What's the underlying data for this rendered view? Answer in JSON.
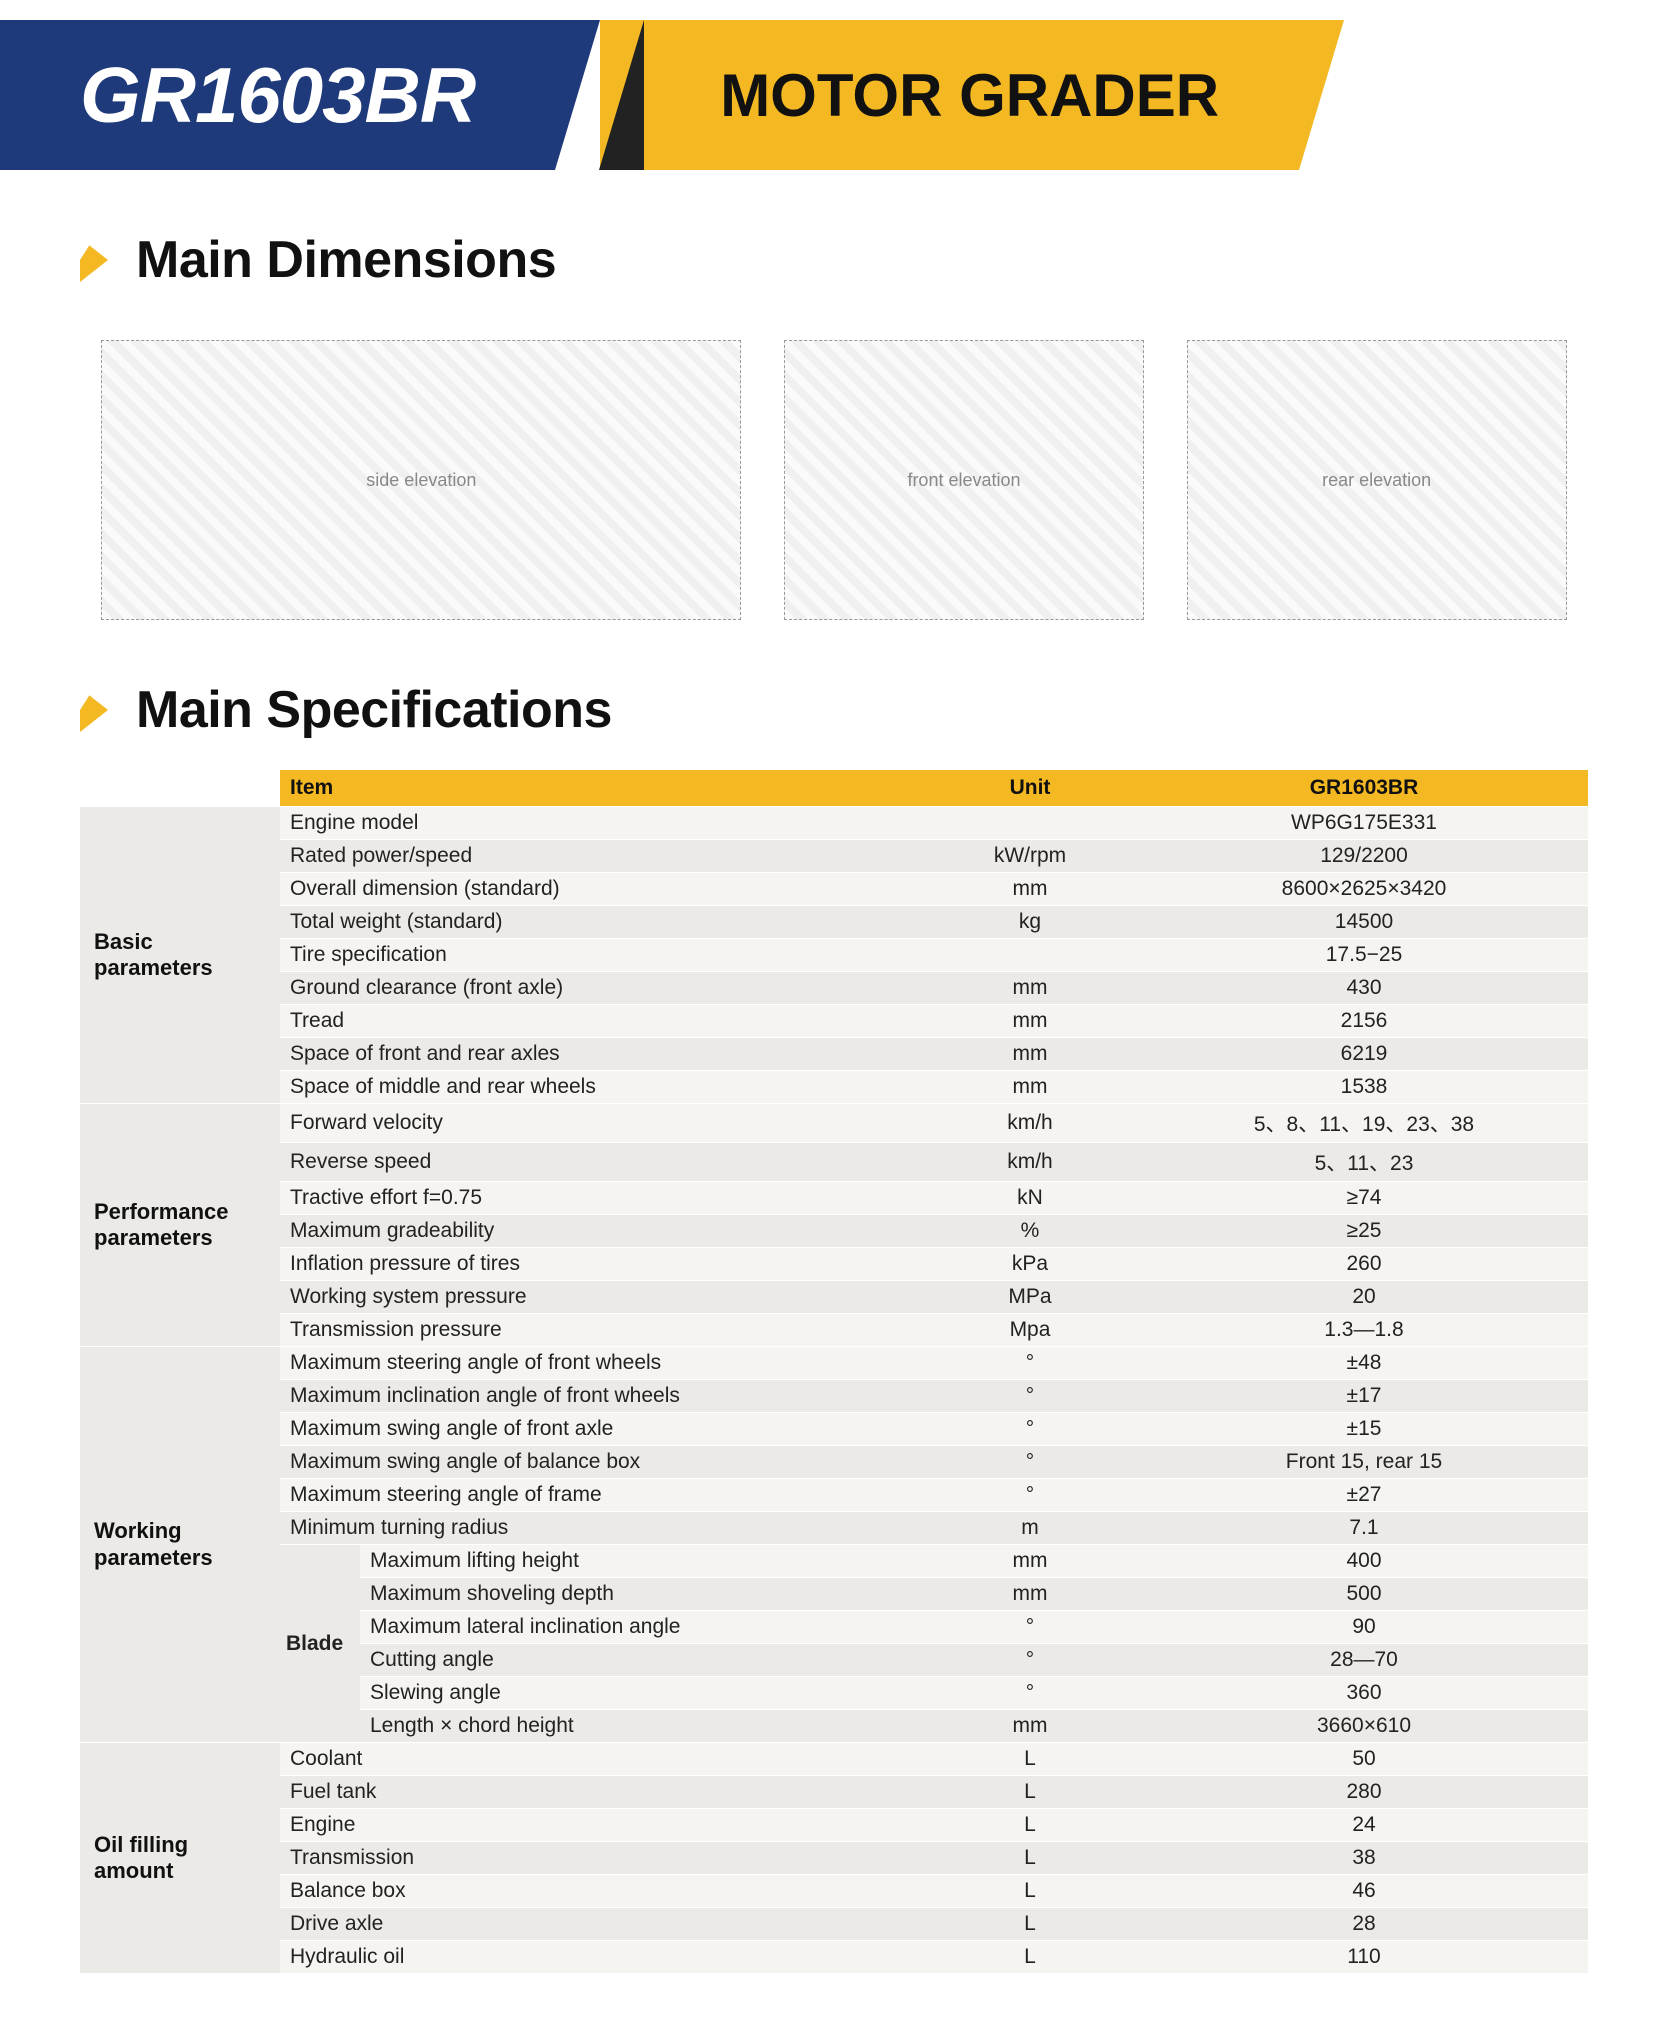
{
  "colors": {
    "brand_blue": "#1f3a7a",
    "brand_yellow": "#f4b822",
    "row_light": "#f5f4f1",
    "row_dark": "#eceae7",
    "text": "#111111"
  },
  "header": {
    "model": "GR1603BR",
    "product_type": "MOTOR GRADER"
  },
  "sections": {
    "dimensions_title": "Main Dimensions",
    "specs_title": "Main Specifications"
  },
  "drawings": {
    "side_label": "side elevation",
    "front_label": "front elevation",
    "rear_label": "rear elevation"
  },
  "table": {
    "head": {
      "item": "Item",
      "unit": "Unit",
      "value": "GR1603BR"
    },
    "groups": [
      {
        "category": "Basic parameters",
        "cat_tint": "light",
        "rows": [
          {
            "item": "Engine model",
            "unit": "",
            "value": "WP6G175E331"
          },
          {
            "item": "Rated power/speed",
            "unit": "kW/rpm",
            "value": "129/2200"
          },
          {
            "item": "Overall dimension (standard)",
            "unit": "mm",
            "value": "8600×2625×3420"
          },
          {
            "item": "Total weight (standard)",
            "unit": "kg",
            "value": "14500"
          },
          {
            "item": "Tire specification",
            "unit": "",
            "value": "17.5−25"
          },
          {
            "item": "Ground clearance (front axle)",
            "unit": "mm",
            "value": "430"
          },
          {
            "item": "Tread",
            "unit": "mm",
            "value": "2156"
          },
          {
            "item": "Space of front and rear axles",
            "unit": "mm",
            "value": "6219"
          },
          {
            "item": "Space of middle and rear wheels",
            "unit": "mm",
            "value": "1538"
          }
        ]
      },
      {
        "category": "Performance parameters",
        "cat_tint": "dark",
        "rows": [
          {
            "item": "Forward velocity",
            "unit": "km/h",
            "value": "5、8、11、19、23、38"
          },
          {
            "item": "Reverse speed",
            "unit": "km/h",
            "value": "5、11、23"
          },
          {
            "item": "Tractive effort f=0.75",
            "unit": "kN",
            "value": "≥74"
          },
          {
            "item": "Maximum gradeability",
            "unit": "%",
            "value": "≥25"
          },
          {
            "item": "Inflation pressure of tires",
            "unit": "kPa",
            "value": "260"
          },
          {
            "item": "Working system pressure",
            "unit": "MPa",
            "value": "20"
          },
          {
            "item": "Transmission pressure",
            "unit": "Mpa",
            "value": "1.3—1.8"
          }
        ]
      },
      {
        "category": "Working parameters",
        "cat_tint": "light",
        "rows": [
          {
            "item": "Maximum steering angle of front wheels",
            "unit": "°",
            "value": "±48"
          },
          {
            "item": "Maximum inclination angle of front wheels",
            "unit": "°",
            "value": "±17"
          },
          {
            "item": "Maximum swing angle of front axle",
            "unit": "°",
            "value": "±15"
          },
          {
            "item": "Maximum swing angle of balance box",
            "unit": "°",
            "value": "Front 15, rear 15"
          },
          {
            "item": "Maximum steering angle of frame",
            "unit": "°",
            "value": "±27"
          },
          {
            "item": "Minimum turning radius",
            "unit": "m",
            "value": "7.1"
          }
        ],
        "subgroup": {
          "label": "Blade",
          "rows": [
            {
              "item": "Maximum lifting height",
              "unit": "mm",
              "value": "400"
            },
            {
              "item": "Maximum shoveling depth",
              "unit": "mm",
              "value": "500"
            },
            {
              "item": "Maximum lateral inclination angle",
              "unit": "°",
              "value": "90"
            },
            {
              "item": "Cutting angle",
              "unit": "°",
              "value": "28—70"
            },
            {
              "item": "Slewing angle",
              "unit": "°",
              "value": "360"
            },
            {
              "item": "Length × chord height",
              "unit": "mm",
              "value": "3660×610"
            }
          ]
        }
      },
      {
        "category": "Oil filling amount",
        "cat_tint": "dark",
        "rows": [
          {
            "item": "Coolant",
            "unit": "L",
            "value": "50"
          },
          {
            "item": "Fuel tank",
            "unit": "L",
            "value": "280"
          },
          {
            "item": "Engine",
            "unit": "L",
            "value": "24"
          },
          {
            "item": "Transmission",
            "unit": "L",
            "value": "38"
          },
          {
            "item": "Balance box",
            "unit": "L",
            "value": "46"
          },
          {
            "item": "Drive axle",
            "unit": "L",
            "value": "28"
          },
          {
            "item": "Hydraulic oil",
            "unit": "L",
            "value": "110"
          }
        ]
      }
    ]
  }
}
